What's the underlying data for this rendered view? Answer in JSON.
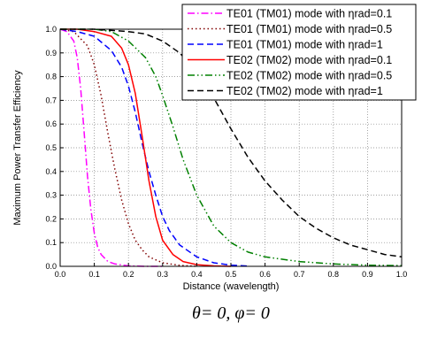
{
  "chart_data": {
    "type": "line",
    "xlabel": "Distance (wavelength)",
    "ylabel": "Maximum Power Transfer Efficiency",
    "caption": "θ= 0,  φ= 0",
    "xlim": [
      0,
      1
    ],
    "ylim": [
      0,
      1
    ],
    "xticks": [
      "0.0",
      "0.1",
      "0.2",
      "0.3",
      "0.4",
      "0.5",
      "0.6",
      "0.7",
      "0.8",
      "0.9",
      "1.0"
    ],
    "yticks": [
      "0.0",
      "0.1",
      "0.2",
      "0.3",
      "0.4",
      "0.5",
      "0.6",
      "0.7",
      "0.8",
      "0.9",
      "1.0"
    ],
    "grid": true,
    "legend_position": "top-right",
    "series": [
      {
        "name": "TE01 (TM01) mode with ηrad=0.1",
        "color": "#ff00ff",
        "style": "dash-dot",
        "x": [
          0,
          0.02,
          0.04,
          0.05,
          0.06,
          0.07,
          0.08,
          0.09,
          0.1,
          0.11,
          0.12,
          0.14,
          0.16,
          0.2,
          0.25,
          0.3
        ],
        "y": [
          1.0,
          0.99,
          0.95,
          0.88,
          0.75,
          0.57,
          0.38,
          0.24,
          0.14,
          0.08,
          0.05,
          0.02,
          0.01,
          0.002,
          0.0,
          0.0
        ]
      },
      {
        "name": "TE01 (TM01) mode with ηrad=0.5",
        "color": "#800000",
        "style": "dotted",
        "x": [
          0,
          0.04,
          0.08,
          0.1,
          0.12,
          0.14,
          0.16,
          0.18,
          0.2,
          0.22,
          0.24,
          0.26,
          0.3,
          0.35,
          0.4
        ],
        "y": [
          1.0,
          0.99,
          0.93,
          0.85,
          0.72,
          0.56,
          0.41,
          0.28,
          0.18,
          0.11,
          0.07,
          0.04,
          0.015,
          0.004,
          0.0
        ]
      },
      {
        "name": "TE01 (TM01) mode with ηrad=1",
        "color": "#0000ff",
        "style": "dashed",
        "x": [
          0,
          0.05,
          0.1,
          0.15,
          0.18,
          0.2,
          0.22,
          0.24,
          0.26,
          0.28,
          0.3,
          0.32,
          0.35,
          0.4,
          0.45,
          0.5,
          0.55
        ],
        "y": [
          1.0,
          0.99,
          0.97,
          0.91,
          0.84,
          0.76,
          0.65,
          0.52,
          0.4,
          0.3,
          0.21,
          0.15,
          0.09,
          0.04,
          0.015,
          0.005,
          0.001
        ]
      },
      {
        "name": "TE02 (TM02) mode with ηrad=0.1",
        "color": "#ff0000",
        "style": "solid",
        "x": [
          0,
          0.05,
          0.1,
          0.15,
          0.18,
          0.2,
          0.22,
          0.24,
          0.26,
          0.28,
          0.3,
          0.33,
          0.36,
          0.4,
          0.45,
          0.5
        ],
        "y": [
          1.0,
          1.0,
          0.99,
          0.97,
          0.92,
          0.85,
          0.73,
          0.55,
          0.36,
          0.21,
          0.11,
          0.05,
          0.02,
          0.007,
          0.002,
          0.0
        ]
      },
      {
        "name": "TE02 (TM02) mode with ηrad=0.5",
        "color": "#008000",
        "style": "dash-dot-dot",
        "x": [
          0,
          0.1,
          0.15,
          0.2,
          0.25,
          0.28,
          0.3,
          0.33,
          0.36,
          0.4,
          0.45,
          0.5,
          0.55,
          0.6,
          0.7,
          0.8,
          0.9,
          1.0
        ],
        "y": [
          1.0,
          1.0,
          0.99,
          0.95,
          0.88,
          0.8,
          0.72,
          0.59,
          0.45,
          0.3,
          0.17,
          0.1,
          0.06,
          0.04,
          0.02,
          0.01,
          0.005,
          0.003
        ]
      },
      {
        "name": "TE02 (TM02) mode with ηrad=1",
        "color": "#000000",
        "style": "dashed",
        "x": [
          0,
          0.1,
          0.2,
          0.25,
          0.3,
          0.35,
          0.4,
          0.45,
          0.5,
          0.55,
          0.6,
          0.65,
          0.7,
          0.75,
          0.8,
          0.85,
          0.9,
          0.95,
          1.0
        ],
        "y": [
          1.0,
          1.0,
          0.99,
          0.98,
          0.95,
          0.9,
          0.82,
          0.71,
          0.58,
          0.46,
          0.36,
          0.28,
          0.21,
          0.16,
          0.12,
          0.09,
          0.07,
          0.05,
          0.04
        ]
      }
    ]
  }
}
